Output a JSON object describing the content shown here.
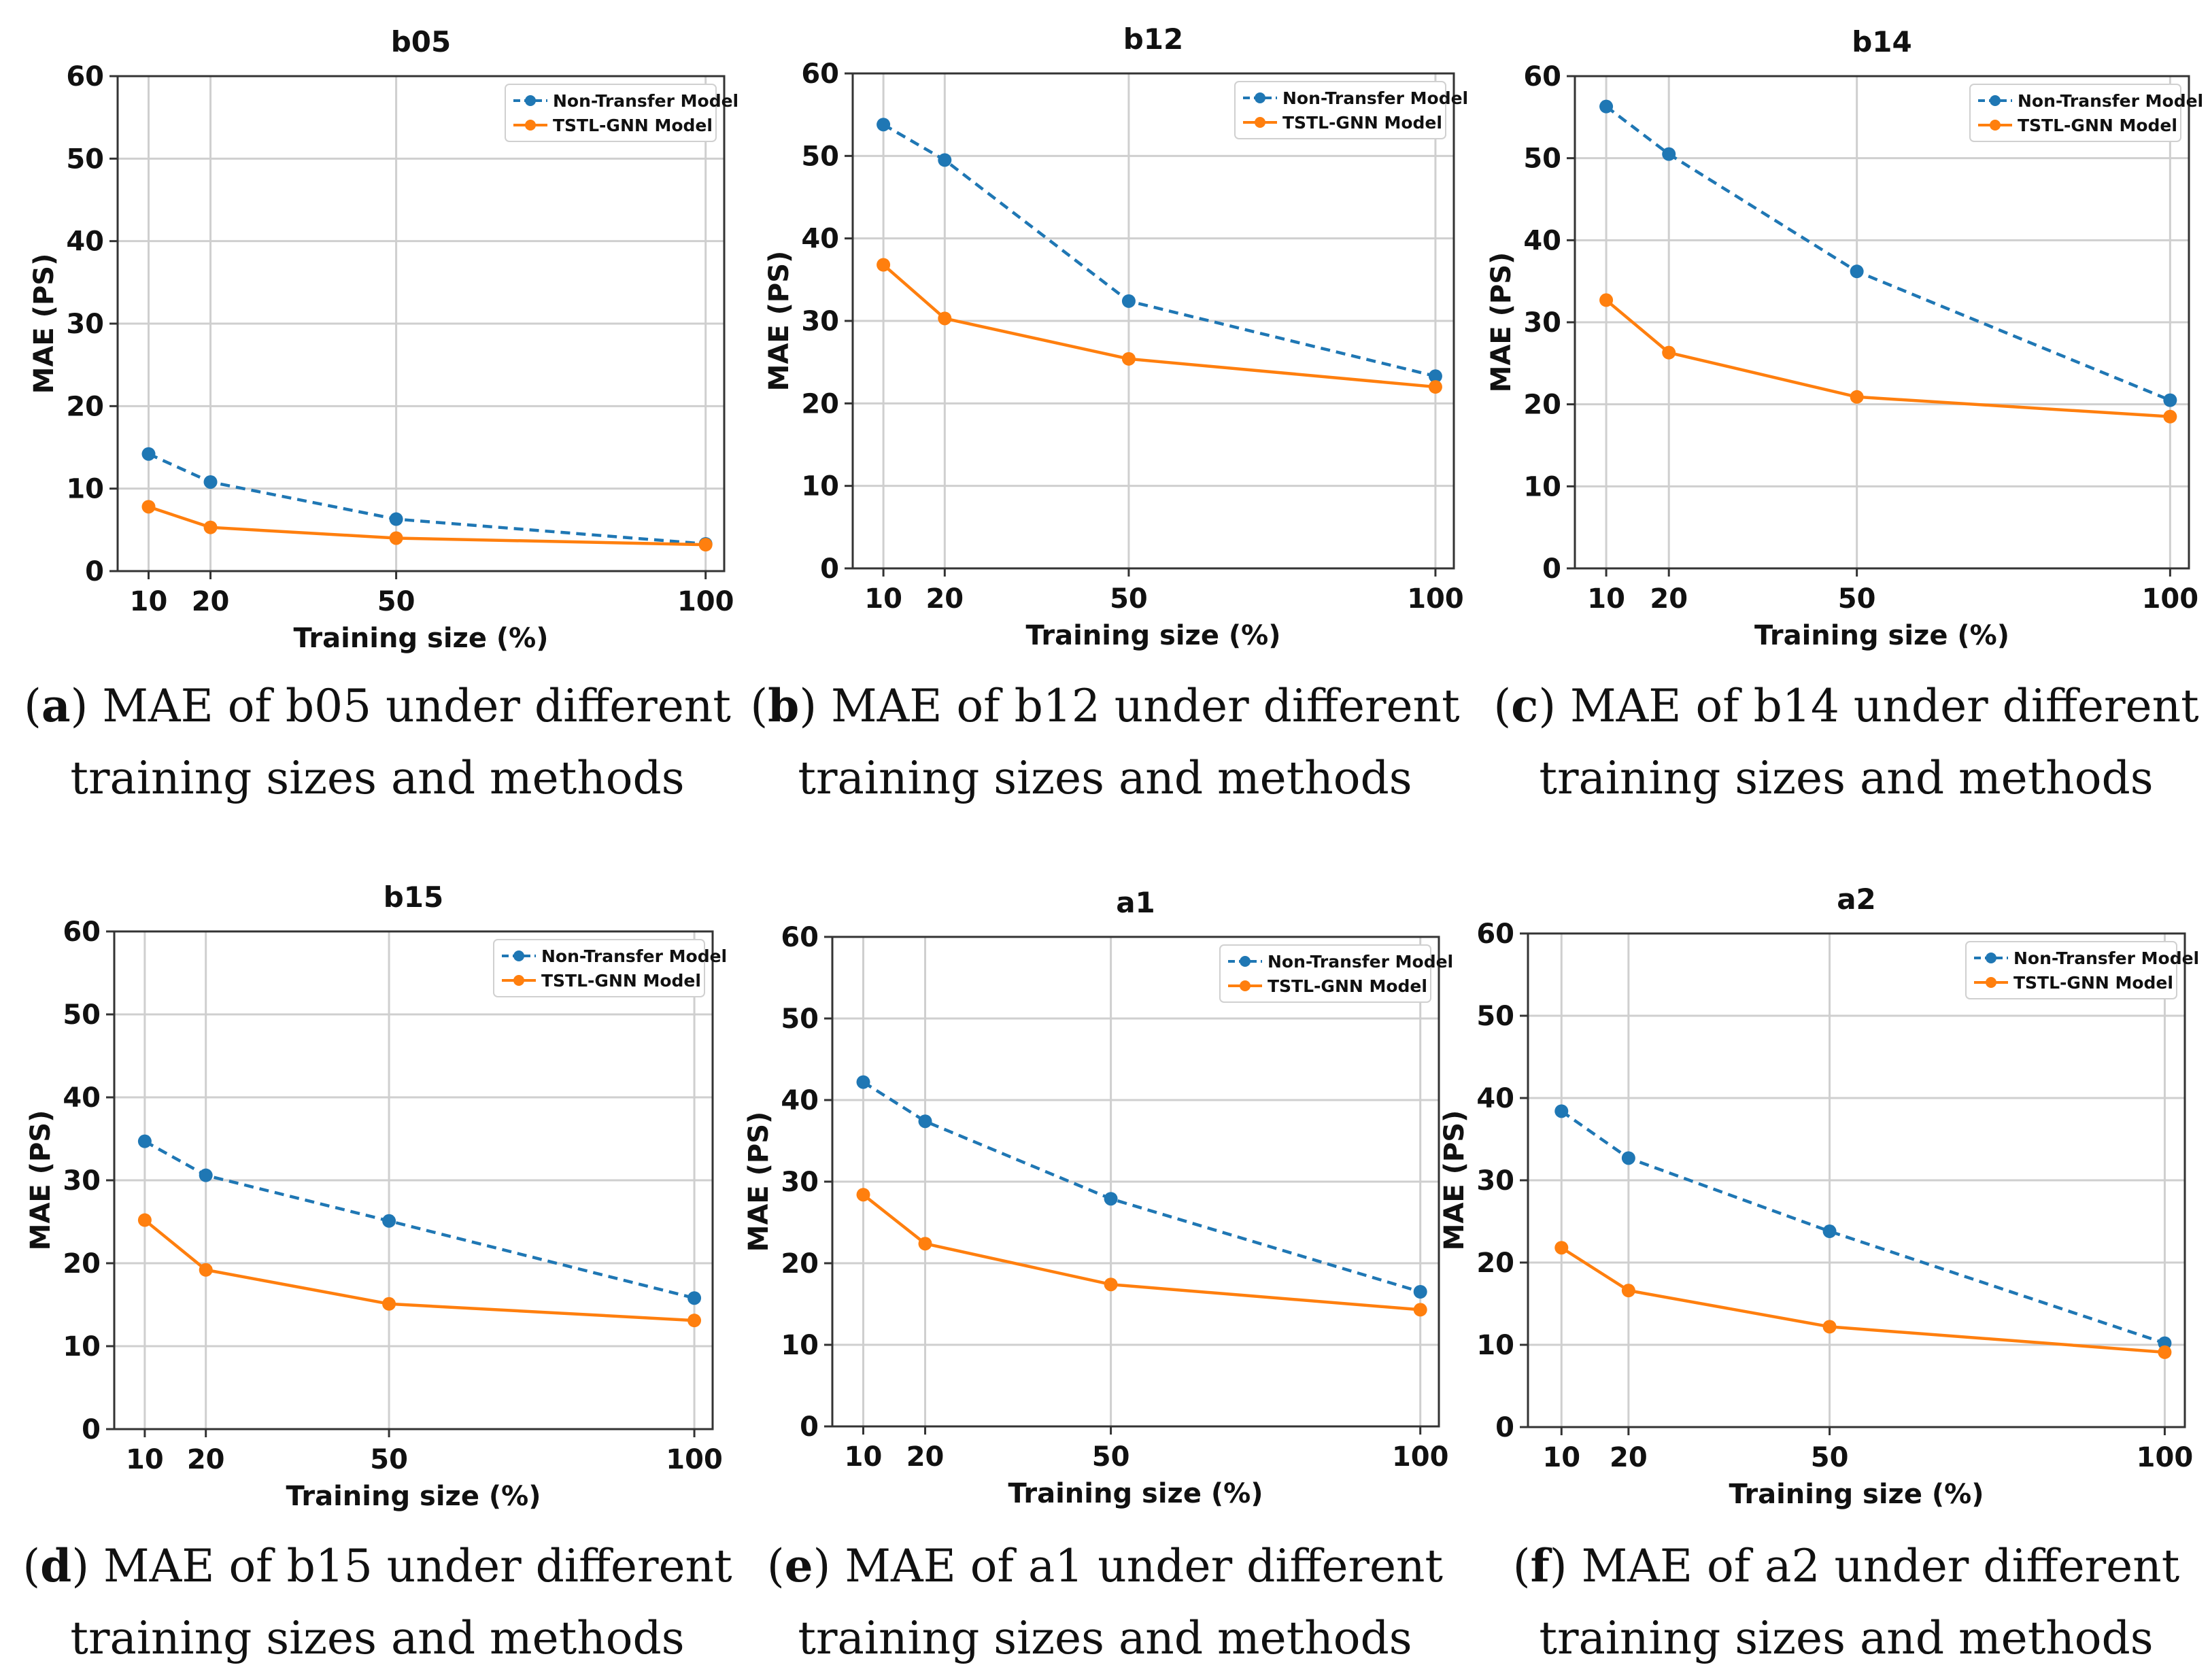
{
  "colors": {
    "non_transfer": "#1f77b4",
    "tstl": "#ff7f0e",
    "grid": "#cfcfcf",
    "frame": "#333333"
  },
  "chart_data": [
    {
      "type": "line",
      "panel": "a",
      "title": "b05",
      "x": [
        10,
        20,
        50,
        100
      ],
      "x_ticks": [
        "10",
        "20",
        "50",
        "100"
      ],
      "xlim": [
        5,
        103
      ],
      "xlabel": "Training size (%)",
      "ylabel": "MAE (PS)",
      "ylim": [
        0,
        60
      ],
      "y_ticks": [
        "0",
        "10",
        "20",
        "30",
        "40",
        "50",
        "60"
      ],
      "grid": true,
      "legend": "top-right",
      "series": [
        {
          "name": "Non-Transfer Model",
          "style": "dashed",
          "values": [
            14.2,
            10.8,
            6.3,
            3.3
          ]
        },
        {
          "name": "TSTL-GNN Model",
          "style": "solid",
          "values": [
            7.8,
            5.3,
            4.0,
            3.2
          ]
        }
      ],
      "caption": {
        "letter": "a",
        "text": " MAE of b05 under different training sizes and methods"
      }
    },
    {
      "type": "line",
      "panel": "b",
      "title": "b12",
      "x": [
        10,
        20,
        50,
        100
      ],
      "x_ticks": [
        "10",
        "20",
        "50",
        "100"
      ],
      "xlim": [
        5,
        103
      ],
      "xlabel": "Training size (%)",
      "ylabel": "MAE (PS)",
      "ylim": [
        0,
        60
      ],
      "y_ticks": [
        "0",
        "10",
        "20",
        "30",
        "40",
        "50",
        "60"
      ],
      "grid": true,
      "legend": "top-right",
      "series": [
        {
          "name": "Non-Transfer Model",
          "style": "dashed",
          "values": [
            53.8,
            49.5,
            32.4,
            23.3
          ]
        },
        {
          "name": "TSTL-GNN Model",
          "style": "solid",
          "values": [
            36.8,
            30.3,
            25.4,
            22.0
          ]
        }
      ],
      "caption": {
        "letter": "b",
        "text": " MAE of b12 under different training sizes and methods"
      }
    },
    {
      "type": "line",
      "panel": "c",
      "title": "b14",
      "x": [
        10,
        20,
        50,
        100
      ],
      "x_ticks": [
        "10",
        "20",
        "50",
        "100"
      ],
      "xlim": [
        5,
        103
      ],
      "xlabel": "Training size (%)",
      "ylabel": "MAE (PS)",
      "ylim": [
        0,
        60
      ],
      "y_ticks": [
        "0",
        "10",
        "20",
        "30",
        "40",
        "50",
        "60"
      ],
      "grid": true,
      "legend": "top-right",
      "series": [
        {
          "name": "Non-Transfer Model",
          "style": "dashed",
          "values": [
            56.3,
            50.5,
            36.2,
            20.5
          ]
        },
        {
          "name": "TSTL-GNN Model",
          "style": "solid",
          "values": [
            32.7,
            26.3,
            20.9,
            18.5
          ]
        }
      ],
      "caption": {
        "letter": "c",
        "text": " MAE of b14 under different training sizes and methods"
      }
    },
    {
      "type": "line",
      "panel": "d",
      "title": "b15",
      "x": [
        10,
        20,
        50,
        100
      ],
      "x_ticks": [
        "10",
        "20",
        "50",
        "100"
      ],
      "xlim": [
        5,
        103
      ],
      "xlabel": "Training size (%)",
      "ylabel": "MAE (PS)",
      "ylim": [
        0,
        60
      ],
      "y_ticks": [
        "0",
        "10",
        "20",
        "30",
        "40",
        "50",
        "60"
      ],
      "grid": true,
      "legend": "top-right",
      "series": [
        {
          "name": "Non-Transfer Model",
          "style": "dashed",
          "values": [
            34.7,
            30.6,
            25.1,
            15.8
          ]
        },
        {
          "name": "TSTL-GNN Model",
          "style": "solid",
          "values": [
            25.2,
            19.2,
            15.1,
            13.1
          ]
        }
      ],
      "caption": {
        "letter": "d",
        "text": " MAE of b15 under different training sizes and methods"
      }
    },
    {
      "type": "line",
      "panel": "e",
      "title": "a1",
      "x": [
        10,
        20,
        50,
        100
      ],
      "x_ticks": [
        "10",
        "20",
        "50",
        "100"
      ],
      "xlim": [
        5,
        103
      ],
      "xlabel": "Training size (%)",
      "ylabel": "MAE (PS)",
      "ylim": [
        0,
        60
      ],
      "y_ticks": [
        "0",
        "10",
        "20",
        "30",
        "40",
        "50",
        "60"
      ],
      "grid": true,
      "legend": "top-right",
      "series": [
        {
          "name": "Non-Transfer Model",
          "style": "dashed",
          "values": [
            42.2,
            37.4,
            27.9,
            16.5
          ]
        },
        {
          "name": "TSTL-GNN Model",
          "style": "solid",
          "values": [
            28.4,
            22.4,
            17.4,
            14.3
          ]
        }
      ],
      "caption": {
        "letter": "e",
        "text": " MAE of a1 under different training sizes and methods"
      }
    },
    {
      "type": "line",
      "panel": "f",
      "title": "a2",
      "x": [
        10,
        20,
        50,
        100
      ],
      "x_ticks": [
        "10",
        "20",
        "50",
        "100"
      ],
      "xlim": [
        5,
        103
      ],
      "xlabel": "Training size (%)",
      "ylabel": "MAE (PS)",
      "ylim": [
        0,
        60
      ],
      "y_ticks": [
        "0",
        "10",
        "20",
        "30",
        "40",
        "50",
        "60"
      ],
      "grid": true,
      "legend": "top-right",
      "series": [
        {
          "name": "Non-Transfer Model",
          "style": "dashed",
          "values": [
            38.4,
            32.7,
            23.8,
            10.2
          ]
        },
        {
          "name": "TSTL-GNN Model",
          "style": "solid",
          "values": [
            21.8,
            16.6,
            12.2,
            9.1
          ]
        }
      ],
      "caption": {
        "letter": "f",
        "text": " MAE of a2 under different training sizes and methods"
      }
    }
  ]
}
